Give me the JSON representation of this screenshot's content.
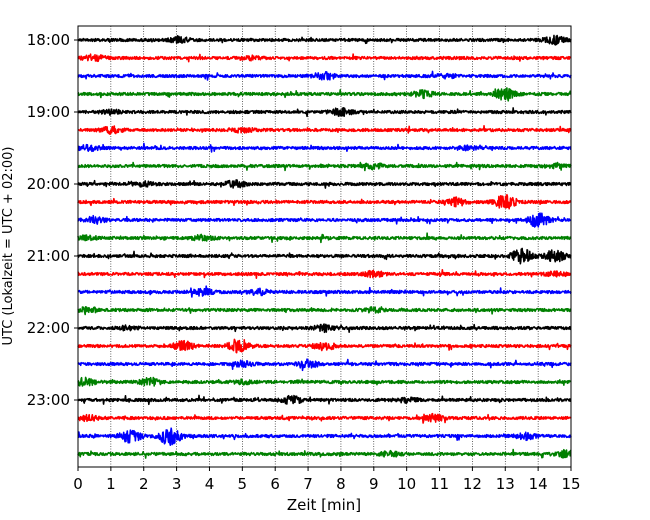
{
  "chart_data": {
    "type": "line",
    "subtype": "helicorder",
    "xlabel": "Zeit  [min]",
    "ylabel": "UTC (Lokalzeit = UTC + 02:00)",
    "xlim": [
      0,
      15
    ],
    "x_ticks": [
      "0",
      "1",
      "2",
      "3",
      "4",
      "5",
      "6",
      "7",
      "8",
      "9",
      "10",
      "11",
      "12",
      "13",
      "14",
      "15"
    ],
    "y_ticks": [
      "18:00",
      "19:00",
      "20:00",
      "21:00",
      "22:00",
      "23:00"
    ],
    "grid": "vertical dotted",
    "traces_per_hour": 4,
    "trace_minutes": 15,
    "color_cycle": [
      "#000000",
      "#ff0000",
      "#0000ff",
      "#008000"
    ],
    "series": [
      {
        "start": "18:00",
        "bursts": [
          {
            "t": 3.1,
            "a": 0.4
          },
          {
            "t": 14.5,
            "a": 0.6
          }
        ]
      },
      {
        "start": "18:15",
        "bursts": [
          {
            "t": 0.5,
            "a": 0.5
          },
          {
            "t": 5.2,
            "a": 0.3
          }
        ]
      },
      {
        "start": "18:30",
        "bursts": [
          {
            "t": 7.5,
            "a": 0.6
          },
          {
            "t": 11.2,
            "a": 0.3
          }
        ]
      },
      {
        "start": "18:45",
        "bursts": [
          {
            "t": 10.5,
            "a": 0.5
          },
          {
            "t": 13.0,
            "a": 1.0
          }
        ]
      },
      {
        "start": "19:00",
        "bursts": [
          {
            "t": 8.0,
            "a": 0.6
          },
          {
            "t": 1.0,
            "a": 0.3
          }
        ]
      },
      {
        "start": "19:15",
        "bursts": [
          {
            "t": 1.0,
            "a": 0.5
          },
          {
            "t": 5.0,
            "a": 0.3
          }
        ]
      },
      {
        "start": "19:30",
        "bursts": [
          {
            "t": 0.3,
            "a": 0.4
          },
          {
            "t": 11.8,
            "a": 0.3
          }
        ]
      },
      {
        "start": "19:45",
        "bursts": [
          {
            "t": 9.0,
            "a": 0.4
          },
          {
            "t": 14.5,
            "a": 0.3
          }
        ]
      },
      {
        "start": "20:00",
        "bursts": [
          {
            "t": 4.8,
            "a": 0.5
          },
          {
            "t": 2.0,
            "a": 0.3
          }
        ]
      },
      {
        "start": "20:15",
        "bursts": [
          {
            "t": 11.5,
            "a": 0.6
          },
          {
            "t": 13.0,
            "a": 1.1
          }
        ]
      },
      {
        "start": "20:30",
        "bursts": [
          {
            "t": 0.5,
            "a": 0.5
          },
          {
            "t": 14.0,
            "a": 1.1
          }
        ]
      },
      {
        "start": "20:45",
        "bursts": [
          {
            "t": 3.8,
            "a": 0.4
          },
          {
            "t": 0.3,
            "a": 0.3
          }
        ]
      },
      {
        "start": "21:00",
        "bursts": [
          {
            "t": 13.5,
            "a": 1.1
          },
          {
            "t": 14.5,
            "a": 0.9
          }
        ]
      },
      {
        "start": "21:15",
        "bursts": [
          {
            "t": 9.0,
            "a": 0.4
          },
          {
            "t": 14.5,
            "a": 0.3
          }
        ]
      },
      {
        "start": "21:30",
        "bursts": [
          {
            "t": 3.8,
            "a": 0.5
          },
          {
            "t": 5.5,
            "a": 0.4
          }
        ]
      },
      {
        "start": "21:45",
        "bursts": [
          {
            "t": 0.3,
            "a": 0.4
          },
          {
            "t": 9.0,
            "a": 0.3
          }
        ]
      },
      {
        "start": "22:00",
        "bursts": [
          {
            "t": 7.5,
            "a": 0.5
          },
          {
            "t": 1.5,
            "a": 0.3
          }
        ]
      },
      {
        "start": "22:15",
        "bursts": [
          {
            "t": 3.2,
            "a": 0.8
          },
          {
            "t": 4.9,
            "a": 1.1
          },
          {
            "t": 7.5,
            "a": 0.6
          }
        ]
      },
      {
        "start": "22:30",
        "bursts": [
          {
            "t": 5.0,
            "a": 0.4
          },
          {
            "t": 7.0,
            "a": 0.6
          }
        ]
      },
      {
        "start": "22:45",
        "bursts": [
          {
            "t": 0.2,
            "a": 0.6
          },
          {
            "t": 2.2,
            "a": 0.6
          },
          {
            "t": 5.0,
            "a": 0.3
          }
        ]
      },
      {
        "start": "23:00",
        "bursts": [
          {
            "t": 6.5,
            "a": 0.6
          },
          {
            "t": 10.0,
            "a": 0.3
          }
        ]
      },
      {
        "start": "23:15",
        "bursts": [
          {
            "t": 0.3,
            "a": 0.4
          },
          {
            "t": 10.8,
            "a": 0.5
          }
        ]
      },
      {
        "start": "23:30",
        "bursts": [
          {
            "t": 1.6,
            "a": 1.0
          },
          {
            "t": 2.8,
            "a": 1.5
          },
          {
            "t": 13.6,
            "a": 0.5
          }
        ]
      },
      {
        "start": "23:45",
        "bursts": [
          {
            "t": 9.5,
            "a": 0.4
          },
          {
            "t": 14.8,
            "a": 0.5
          }
        ]
      }
    ]
  }
}
